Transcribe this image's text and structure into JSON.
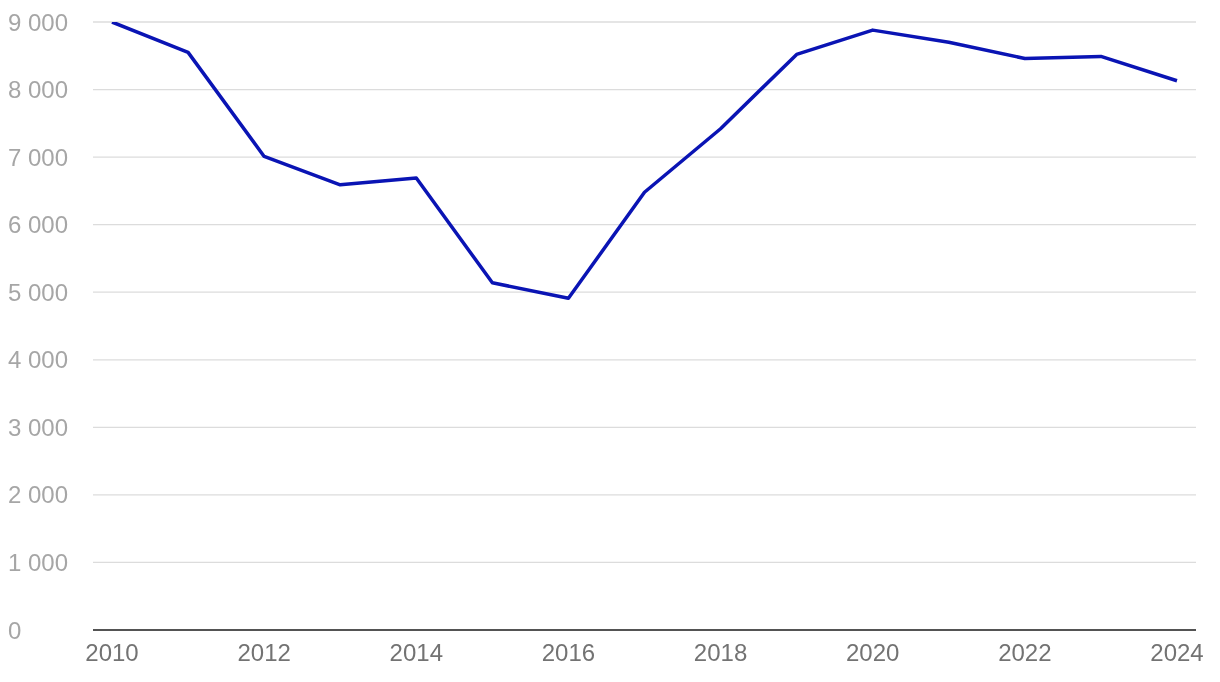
{
  "chart_data": {
    "type": "line",
    "x": [
      2010,
      2011,
      2012,
      2013,
      2014,
      2015,
      2016,
      2017,
      2018,
      2019,
      2020,
      2021,
      2022,
      2023,
      2024
    ],
    "series": [
      {
        "color": "#0a14b4",
        "values": [
          9000,
          8550,
          7010,
          6590,
          6690,
          5140,
          4910,
          6480,
          7420,
          8520,
          8880,
          8700,
          8460,
          8490,
          8130
        ]
      }
    ],
    "xlim": [
      2009.75,
      2024.25
    ],
    "xticks": [
      2010,
      2012,
      2014,
      2016,
      2018,
      2020,
      2022,
      2024
    ],
    "ylim": [
      0,
      9000
    ],
    "yticks": [
      {
        "value": 0,
        "label": "0"
      },
      {
        "value": 1000,
        "label": "1 000"
      },
      {
        "value": 2000,
        "label": "2 000"
      },
      {
        "value": 3000,
        "label": "3 000"
      },
      {
        "value": 4000,
        "label": "4 000"
      },
      {
        "value": 5000,
        "label": "5 000"
      },
      {
        "value": 6000,
        "label": "6 000"
      },
      {
        "value": 7000,
        "label": "7 000"
      },
      {
        "value": 8000,
        "label": "8 000"
      },
      {
        "value": 9000,
        "label": "9 000"
      }
    ],
    "grid": "y",
    "legend": false,
    "marker": "none",
    "line_style": "solid"
  }
}
